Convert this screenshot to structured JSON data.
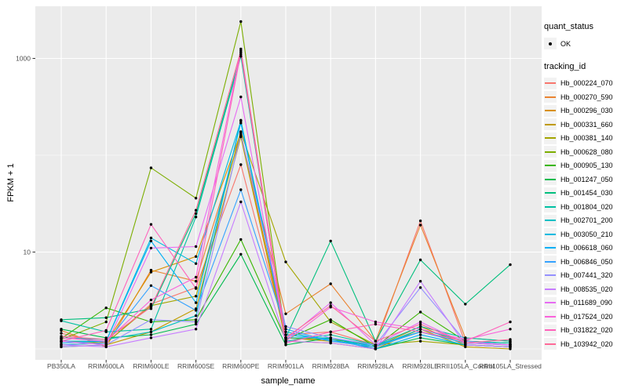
{
  "figure": {
    "background": "#FFFFFF",
    "panel_background": "#EBEBEB",
    "gridline_color": "#FFFFFF",
    "tick_color": "#333333",
    "tick_label_color": "#4D4D4D",
    "point_color": "#000000"
  },
  "legend": {
    "quant_status": {
      "title": "quant_status",
      "items": [
        {
          "label": "OK",
          "marker": "black-point"
        }
      ]
    },
    "tracking_id": {
      "title": "tracking_id"
    }
  },
  "chart_data": {
    "type": "line",
    "title": "",
    "xlabel": "sample_name",
    "ylabel": "FPKM + 1",
    "y_scale": "log10",
    "y_ticks": [
      10,
      1000
    ],
    "y_tick_labels": [
      "10",
      "1000"
    ],
    "y_minor_gridlines": [
      1,
      100
    ],
    "ylim": [
      0.78,
      3400
    ],
    "grid": true,
    "legend_position": "right",
    "point_marker": "black-dot-on-every-value",
    "categories": [
      "PB350LA",
      "RRIM600LA",
      "RRIM600LE",
      "RRIM600SE",
      "RRIM600PE",
      "RRIM901LA",
      "RRIM928BA",
      "RRIM928LA",
      "RRIM928LE",
      "RRII105LA_Control",
      "RRII105LA_Stressed"
    ],
    "series": [
      {
        "name": "Hb_000224_070",
        "color": "#F8766D",
        "values": [
          1.45,
          1.15,
          2.9,
          4.3,
          80,
          1.4,
          1.5,
          1.1,
          21,
          1.15,
          1.1
        ]
      },
      {
        "name": "Hb_000270_590",
        "color": "#EA8331",
        "values": [
          1.55,
          1.05,
          6.5,
          5.0,
          160,
          2.3,
          4.7,
          1.2,
          19,
          1.3,
          1.2
        ]
      },
      {
        "name": "Hb_000296_030",
        "color": "#D89000",
        "values": [
          1.1,
          1.15,
          6.2,
          9.0,
          170,
          1.3,
          1.2,
          1.05,
          1.7,
          1.1,
          1.05
        ]
      },
      {
        "name": "Hb_000331_660",
        "color": "#C09B00",
        "values": [
          1.05,
          1.1,
          1.5,
          2.6,
          155,
          1.2,
          1.15,
          1.0,
          1.6,
          1.05,
          1.0
        ]
      },
      {
        "name": "Hb_000381_140",
        "color": "#A3A500",
        "values": [
          1.2,
          1.15,
          2.8,
          3.5,
          175,
          7.9,
          1.9,
          1.1,
          1.2,
          1.1,
          1.05
        ]
      },
      {
        "name": "Hb_000628_080",
        "color": "#7CAE00",
        "values": [
          1.25,
          1.9,
          74,
          36,
          2400,
          1.3,
          1.25,
          1.1,
          1.5,
          1.2,
          1.1
        ]
      },
      {
        "name": "Hb_000905_130",
        "color": "#39B600",
        "values": [
          1.28,
          2.65,
          1.9,
          2.0,
          13.5,
          1.25,
          2.0,
          1.05,
          2.4,
          1.2,
          1.15
        ]
      },
      {
        "name": "Hb_001247_050",
        "color": "#00BB4E",
        "values": [
          1.6,
          1.3,
          1.4,
          1.8,
          9.5,
          1.1,
          1.3,
          1.0,
          1.3,
          1.1,
          1.05
        ]
      },
      {
        "name": "Hb_001454_030",
        "color": "#00BF7D",
        "values": [
          2.0,
          2.1,
          2.6,
          25,
          1100,
          1.3,
          13,
          1.2,
          8.3,
          2.9,
          7.4
        ]
      },
      {
        "name": "Hb_001804_020",
        "color": "#00C1A3",
        "values": [
          1.95,
          1.5,
          1.6,
          23,
          1050,
          1.2,
          1.4,
          1.1,
          1.7,
          1.3,
          1.2
        ]
      },
      {
        "name": "Hb_002701_200",
        "color": "#00BFC4",
        "values": [
          1.3,
          1.25,
          1.5,
          2.2,
          230,
          1.3,
          1.3,
          1.05,
          1.6,
          1.2,
          1.15
        ]
      },
      {
        "name": "Hb_003050_210",
        "color": "#00BAE0",
        "values": [
          1.2,
          1.2,
          14,
          7.6,
          225,
          1.5,
          1.2,
          1.1,
          1.5,
          1.15,
          1.1
        ]
      },
      {
        "name": "Hb_006618_060",
        "color": "#00B0F6",
        "values": [
          1.15,
          1.2,
          13,
          3.0,
          215,
          1.4,
          1.25,
          1.0,
          1.4,
          1.1,
          1.05
        ]
      },
      {
        "name": "Hb_006846_050",
        "color": "#35A2FF",
        "values": [
          1.1,
          1.15,
          4.5,
          2.5,
          44,
          1.6,
          1.2,
          1.05,
          1.5,
          1.15,
          1.1
        ]
      },
      {
        "name": "Hb_007441_320",
        "color": "#9590FF",
        "values": [
          1.05,
          1.1,
          2.0,
          1.9,
          165,
          1.7,
          1.3,
          1.1,
          4.3,
          1.2,
          1.1
        ]
      },
      {
        "name": "Hb_008535_020",
        "color": "#C77CFF",
        "values": [
          1.1,
          1.05,
          1.3,
          1.6,
          33,
          1.2,
          1.15,
          1.0,
          5.0,
          1.1,
          1.05
        ]
      },
      {
        "name": "Hb_011689_090",
        "color": "#E76BF3",
        "values": [
          1.2,
          1.1,
          11,
          11.4,
          400,
          1.25,
          3.0,
          1.1,
          1.9,
          1.15,
          1.1
        ]
      },
      {
        "name": "Hb_017524_020",
        "color": "#FA62DB",
        "values": [
          1.3,
          1.2,
          3.2,
          5.5,
          1250,
          1.2,
          2.7,
          1.9,
          1.6,
          1.25,
          1.6
        ]
      },
      {
        "name": "Hb_031822_020",
        "color": "#FF62BC",
        "values": [
          1.2,
          1.55,
          19.3,
          4.2,
          1150,
          1.15,
          1.5,
          1.8,
          1.5,
          1.2,
          1.9
        ]
      },
      {
        "name": "Hb_103942_020",
        "color": "#FF6A98",
        "values": [
          1.35,
          1.25,
          2.7,
          27,
          1200,
          1.3,
          2.8,
          1.2,
          1.8,
          1.15,
          1.25
        ]
      }
    ]
  }
}
